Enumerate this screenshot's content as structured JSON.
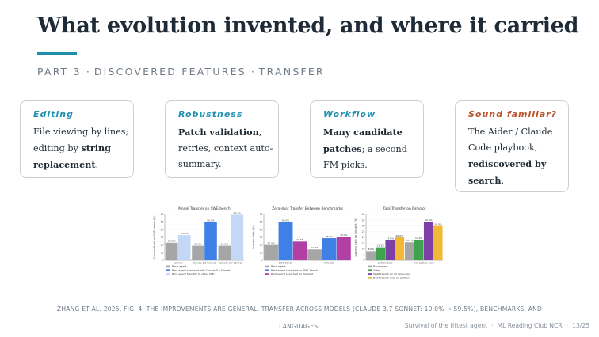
{
  "slide": {
    "title": "What evolution invented, and where it carried",
    "kicker": [
      "PART 3",
      "DISCOVERED FEATURES",
      "TRANSFER"
    ],
    "kicker_separator": "·",
    "accent_color": "#1f8fb0",
    "cards": [
      {
        "heading": "Editing",
        "segments": [
          {
            "text": "File viewing by lines; editing by ",
            "bold": false
          },
          {
            "text": "string replacement",
            "bold": true
          },
          {
            "text": ".",
            "bold": false
          }
        ]
      },
      {
        "heading": "Robustness",
        "segments": [
          {
            "text": "Patch validation",
            "bold": true
          },
          {
            "text": ", retries, context auto-summary.",
            "bold": false
          }
        ]
      },
      {
        "heading": "Workflow",
        "segments": [
          {
            "text": "Many candidate patches",
            "bold": true
          },
          {
            "text": "; a second FM picks.",
            "bold": false
          }
        ]
      },
      {
        "heading": "Sound familiar?",
        "heading_color": "#b8532b",
        "segments": [
          {
            "text": "The Aider / Claude Code playbook, ",
            "bold": false
          },
          {
            "text": "rediscovered by search",
            "bold": true
          },
          {
            "text": ".",
            "bold": false
          }
        ]
      }
    ],
    "caption": "ZHANG ET AL. 2025, FIG. 4: THE IMPROVEMENTS ARE GENERAL. TRANSFER ACROSS MODELS (CLAUDE 3.7 SONNET: 19.0% → 59.5%), BENCHMARKS, AND LANGUAGES.",
    "footer": {
      "talk": "Survival of the fittest agent",
      "venue": "ML Reading Club NCR",
      "page": "13/25"
    }
  },
  "chart_data": [
    {
      "type": "bar",
      "title": "Model Transfer on SWE-bench",
      "ylabel": "Success Rate on SWE-bench (%)",
      "ylim": [
        0,
        60
      ],
      "yticks": [
        0,
        10,
        20,
        30,
        40,
        50,
        60
      ],
      "categories": [
        "o3-mini",
        "Claude 3.5 Sonnet",
        "Claude 3.7 Sonnet"
      ],
      "series": [
        {
          "name": "Base agent",
          "color": "#a6a6a6",
          "values": [
            23.0,
            19.0,
            19.0
          ],
          "labels": [
            "23.0%",
            "19.0%",
            "19.0%"
          ]
        },
        {
          "name": "Best agent searched with Claude 3.5 Sonnet",
          "color": "#3f80e6",
          "values": [
            null,
            50.0,
            null
          ],
          "labels": [
            "",
            "50.0%",
            ""
          ]
        },
        {
          "name": "Best agent transfer to other FMs",
          "color": "#c3d8f7",
          "values": [
            33.0,
            null,
            59.5
          ],
          "labels": [
            "33.0%",
            "",
            "59.5%"
          ]
        }
      ]
    },
    {
      "type": "bar",
      "title": "Zero-shot Transfer Between Benchmarks",
      "ylabel": "Success Rate (%)",
      "ylim": [
        0,
        60
      ],
      "yticks": [
        0,
        10,
        20,
        30,
        40,
        50,
        60
      ],
      "categories": [
        "SWE-bench",
        "Polyglot"
      ],
      "series": [
        {
          "name": "Base agent",
          "color": "#a6a6a6",
          "values": [
            20.0,
            14.2
          ],
          "labels": [
            "20.0%",
            "14.2%"
          ]
        },
        {
          "name": "Best agent searched on SWE-bench",
          "color": "#3f80e6",
          "values": [
            50.0,
            28.9
          ],
          "labels": [
            "50.0%",
            "28.9%"
          ]
        },
        {
          "name": "Best agent searched on Polyglot",
          "color": "#b23fa6",
          "values": [
            24.5,
            30.7
          ],
          "labels": [
            "24.5%",
            "30.7%"
          ]
        }
      ]
    },
    {
      "type": "bar",
      "title": "Task Transfer on Polyglot",
      "ylabel": "Success Rate on Polyglot (%)",
      "ylim": [
        0,
        40
      ],
      "yticks": [
        0,
        5,
        10,
        15,
        20,
        25,
        30,
        35,
        40
      ],
      "categories": [
        "python task",
        "non-python task"
      ],
      "series": [
        {
          "name": "Base agent",
          "color": "#a6a6a6",
          "values": [
            8.0,
            15.7
          ],
          "labels": [
            "8.0%",
            "15.7%"
          ]
        },
        {
          "name": "Aider",
          "color": "#3fa34d",
          "values": [
            11.3,
            17.9
          ],
          "labels": [
            "11.3%",
            "17.9%"
          ]
        },
        {
          "name": "DGM search on all language",
          "color": "#7b3fa6",
          "values": [
            17.6,
            33.6
          ],
          "labels": [
            "17.6%",
            "33.6%"
          ]
        },
        {
          "name": "DGM search only on python",
          "color": "#f2b838",
          "values": [
            20.0,
            30.0
          ],
          "labels": [
            "20.0%",
            "30.0%"
          ]
        }
      ]
    }
  ]
}
